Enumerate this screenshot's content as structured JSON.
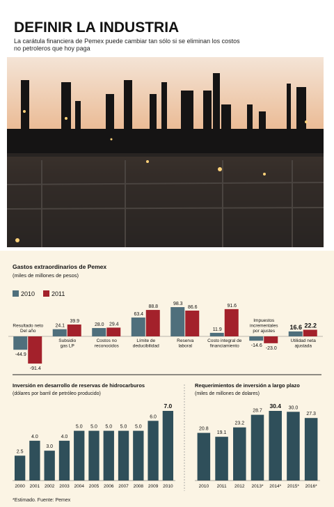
{
  "header": {
    "title": "DEFINIR LA INDUSTRIA",
    "subtitle": "La carátula financiera de Pemex puede cambiar tan sólo si se eliminan los costos\nno petroleros que hoy paga"
  },
  "chart_data": [
    {
      "type": "bar",
      "title": "Gastos extraordinarios de Pemex",
      "subtitle": "(miles de millones de pesos)",
      "categories": [
        "Resultado neto\nDel año",
        "Subsidio\ngas LP",
        "Costos no\nreconocidos",
        "Límite de\ndeducibilidad",
        "Reserva\nlaboral",
        "Costo integral de\nfinanciamiento",
        "Impuestos\nincrementales\npor ajustes",
        "Utilidad neta\najustada"
      ],
      "series": [
        {
          "name": "2010",
          "color": "#4f6f7c",
          "values": [
            -44.9,
            24.1,
            28.0,
            63.4,
            98.3,
            11.9,
            -14.6,
            16.6
          ],
          "value_labels": [
            "-44.9",
            "24.1",
            "28.0",
            "63.4",
            "98.3",
            "11.9",
            "-14.6",
            "16.6"
          ]
        },
        {
          "name": "2011",
          "color": "#a3212b",
          "values": [
            -91.4,
            39.9,
            29.4,
            88.8,
            86.6,
            91.6,
            -23.0,
            22.2
          ],
          "value_labels": [
            "-91.4",
            "39.9",
            "29.4",
            "88.8",
            "86.6",
            "91.6",
            "-23.0",
            "22.2"
          ]
        }
      ]
    },
    {
      "type": "bar",
      "title": "Inversión en desarrollo de reservas de hidrocarburos",
      "subtitle": "(dólares por barril de petróleo producido)",
      "categories": [
        "2000",
        "2001",
        "2002",
        "2003",
        "2004",
        "2005",
        "2006",
        "2007",
        "2008",
        "2009",
        "2010"
      ],
      "color": "#2f4f5a",
      "values": [
        2.5,
        4.0,
        3.0,
        4.0,
        5.0,
        5.0,
        5.0,
        5.0,
        5.0,
        6.0,
        7.0
      ],
      "value_labels": [
        "2.5",
        "4.0",
        "3.0",
        "4.0",
        "5.0",
        "5.0",
        "5.0",
        "5.0",
        "5.0",
        "6.0",
        "7.0"
      ]
    },
    {
      "type": "bar",
      "title": "Requerimientos de inversión a largo plazo",
      "subtitle": "(miles de millones de dolares)",
      "categories": [
        "2010",
        "2011",
        "2012",
        "2013*",
        "2014*",
        "2015*",
        "2016*"
      ],
      "color": "#2f4f5a",
      "values": [
        20.8,
        19.1,
        23.2,
        28.7,
        30.4,
        30.0,
        27.3
      ],
      "value_labels": [
        "20.8",
        "19.1",
        "23.2",
        "28.7",
        "30.4",
        "30.0",
        "27.3"
      ]
    }
  ],
  "footnote": "*Estimado. Fuente: Pemex"
}
